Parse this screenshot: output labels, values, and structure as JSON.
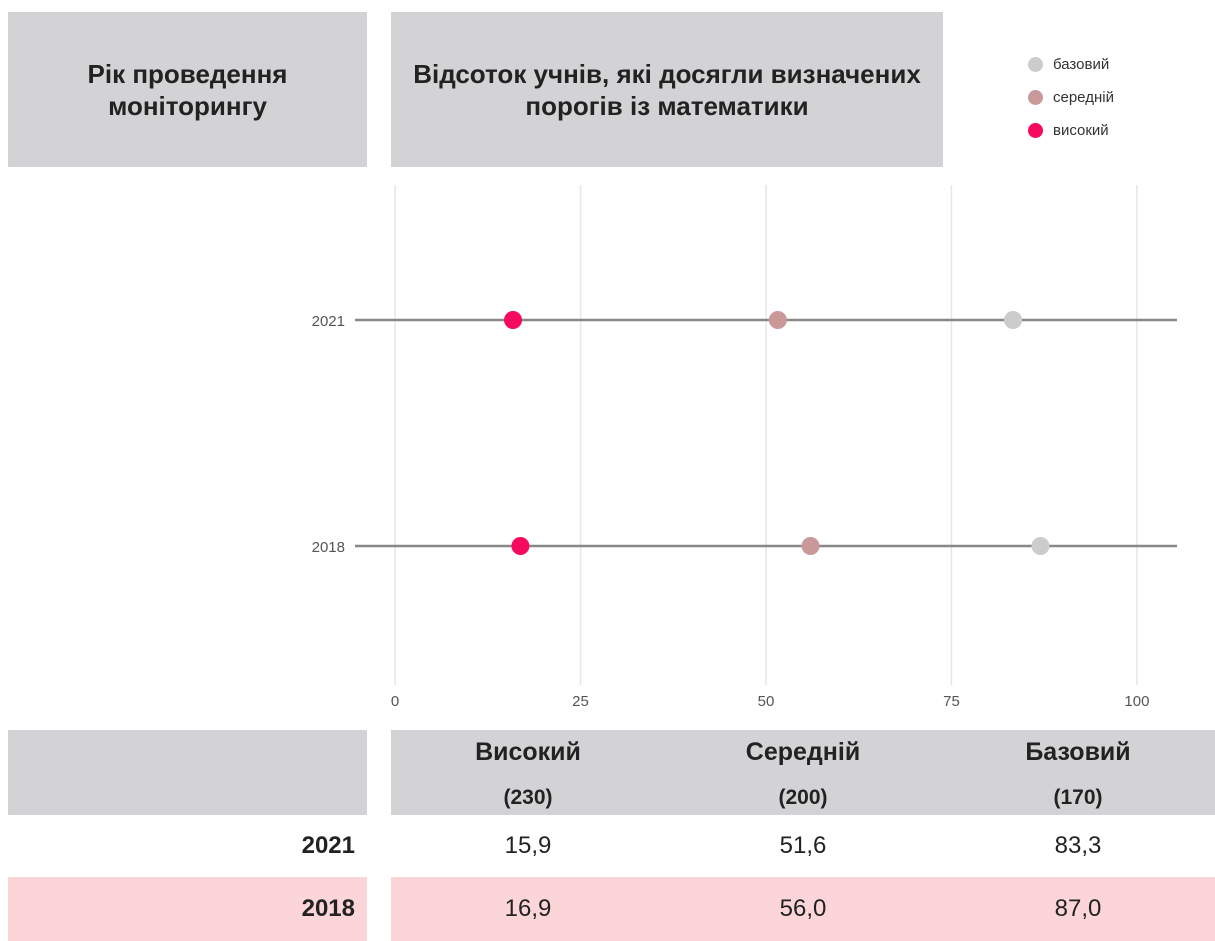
{
  "chart_data": {
    "type": "dot",
    "categories": [
      "2021",
      "2018"
    ],
    "series": [
      {
        "name": "базовий",
        "color": "#cccccc",
        "values": [
          83.3,
          87.0
        ],
        "value_labels": [
          "83,3",
          "87,0"
        ]
      },
      {
        "name": "середній",
        "color": "#c9999a",
        "values": [
          51.6,
          56.0
        ],
        "value_labels": [
          "51,6",
          "56,0"
        ]
      },
      {
        "name": "високий",
        "color": "#f50a5f",
        "values": [
          15.9,
          16.9
        ],
        "value_labels": [
          "15,9",
          "16,9"
        ]
      }
    ],
    "xlim": [
      -5.4,
      105.4
    ],
    "xticks": [
      0,
      25,
      50,
      75,
      100
    ],
    "grid": true,
    "legend": "top-right"
  },
  "table": {
    "year_header": "Рік проведення моніторингу",
    "value_header": "Відсоток учнів, які досягли визначених порогів із математики",
    "columns": [
      {
        "name": "Високий",
        "note": "(230)"
      },
      {
        "name": "Середній",
        "note": "(200)"
      },
      {
        "name": "Базовий",
        "note": "(170)"
      }
    ]
  }
}
